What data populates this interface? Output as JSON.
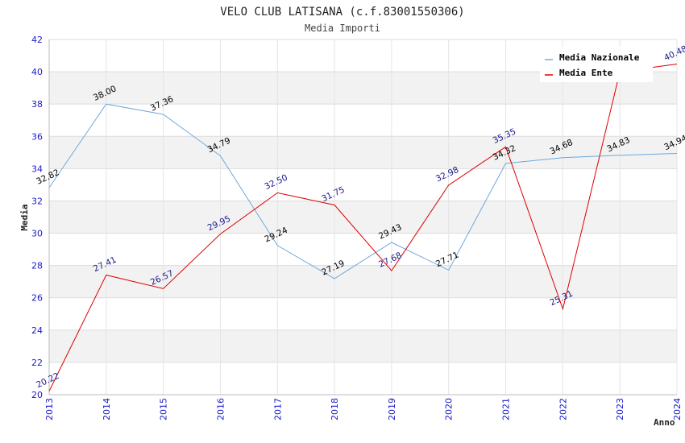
{
  "chart_data": {
    "type": "line",
    "title": "VELO CLUB LATISANA (c.f.83001550306)",
    "subtitle": "Media Importi",
    "xlabel": "Anno",
    "ylabel": "Media",
    "ylim": [
      20,
      42
    ],
    "ytick_step": 2,
    "grid": true,
    "legend_position": "top-right",
    "x": [
      "2013",
      "2014",
      "2015",
      "2016",
      "2017",
      "2018",
      "2019",
      "2020",
      "2021",
      "2022",
      "2023",
      "2024"
    ],
    "series": [
      {
        "name": "Media Nazionale",
        "color": "#6fa8dc",
        "label_color": "#000000",
        "values": [
          32.82,
          38.0,
          37.36,
          34.79,
          29.24,
          27.19,
          29.43,
          27.71,
          34.32,
          34.68,
          34.83,
          34.94
        ],
        "labels": [
          "32.82",
          "38.00",
          "37.36",
          "34.79",
          "29.24",
          "27.19",
          "29.43",
          "27.71",
          "34.32",
          "34.68",
          "34.83",
          "34.94"
        ]
      },
      {
        "name": "Media Ente",
        "color": "#e00000",
        "label_color": "#1a1a8c",
        "values": [
          20.22,
          27.41,
          26.57,
          29.95,
          32.5,
          31.75,
          27.68,
          32.98,
          35.35,
          25.31,
          40.0,
          40.48
        ],
        "labels": [
          "20.22",
          "27.41",
          "26.57",
          "29.95",
          "32.50",
          "31.75",
          "27.68",
          "32.98",
          "35.35",
          "25.31",
          "",
          "40.48"
        ]
      }
    ]
  }
}
